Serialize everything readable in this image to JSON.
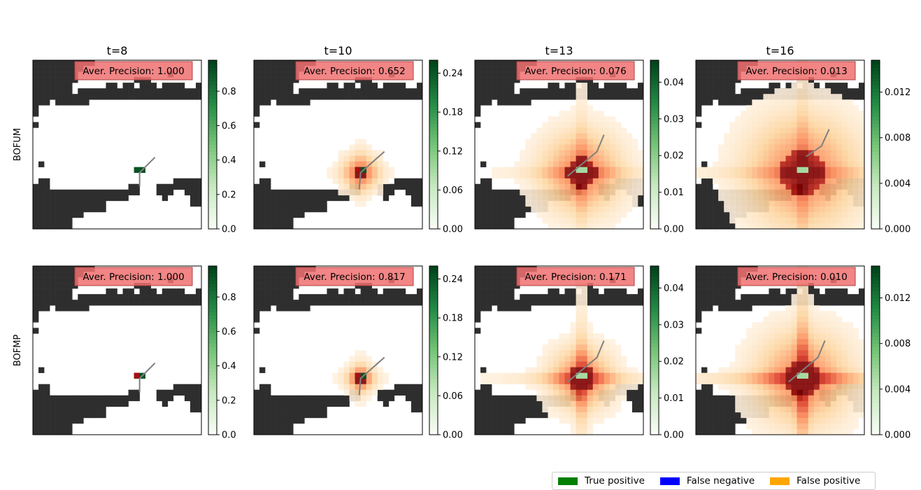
{
  "chart_data": {
    "type": "heatmap",
    "columns": [
      "t=8",
      "t=10",
      "t=13",
      "t=16"
    ],
    "rows": [
      "BOFUM",
      "BOFMP"
    ],
    "annotation_prefix": "Aver. Precision: ",
    "panels": [
      {
        "row": "BOFUM",
        "title": "t=8",
        "average_precision": "1.000",
        "colorbar_ticks": [
          "0.0",
          "0.2",
          "0.4",
          "0.6",
          "0.8"
        ],
        "colorbar_max": 0.98,
        "spread": 0.0,
        "cross": 0.0
      },
      {
        "row": "BOFUM",
        "title": "t=10",
        "average_precision": "0.652",
        "colorbar_ticks": [
          "0.00",
          "0.06",
          "0.12",
          "0.18",
          "0.24"
        ],
        "colorbar_max": 0.26,
        "spread": 3.0,
        "cross": 0.2
      },
      {
        "row": "BOFUM",
        "title": "t=13",
        "average_precision": "0.076",
        "colorbar_ticks": [
          "0.00",
          "0.01",
          "0.02",
          "0.03",
          "0.04"
        ],
        "colorbar_max": 0.046,
        "spread": 6.5,
        "cross": 0.5
      },
      {
        "row": "BOFUM",
        "title": "t=16",
        "average_precision": "0.013",
        "colorbar_ticks": [
          "0.000",
          "0.004",
          "0.008",
          "0.012"
        ],
        "colorbar_max": 0.0148,
        "spread": 9.0,
        "cross": 0.5
      },
      {
        "row": "BOFMP",
        "title": "t=8",
        "average_precision": "1.000",
        "colorbar_ticks": [
          "0.0",
          "0.2",
          "0.4",
          "0.6",
          "0.8"
        ],
        "colorbar_max": 0.98,
        "spread": 0.4,
        "cross": 0.0
      },
      {
        "row": "BOFMP",
        "title": "t=10",
        "average_precision": "0.817",
        "colorbar_ticks": [
          "0.00",
          "0.06",
          "0.12",
          "0.18",
          "0.24"
        ],
        "colorbar_max": 0.26,
        "spread": 2.2,
        "cross": 0.3
      },
      {
        "row": "BOFMP",
        "title": "t=13",
        "average_precision": "0.171",
        "colorbar_ticks": [
          "0.00",
          "0.01",
          "0.02",
          "0.03",
          "0.04"
        ],
        "colorbar_max": 0.046,
        "spread": 5.0,
        "cross": 1.0
      },
      {
        "row": "BOFMP",
        "title": "t=16",
        "average_precision": "0.010",
        "colorbar_ticks": [
          "0.000",
          "0.004",
          "0.008",
          "0.012"
        ],
        "colorbar_max": 0.0148,
        "spread": 7.5,
        "cross": 1.2
      }
    ],
    "legend": [
      {
        "label": "True positive",
        "color": "#008000"
      },
      {
        "label": "False negative",
        "color": "#0000ff"
      },
      {
        "label": "False positive",
        "color": "#ffa500"
      }
    ],
    "colormaps": {
      "probability": "Greens",
      "prediction": "OrRd"
    },
    "colors": {
      "occupied": "#2e2e2e",
      "free": "#ffffff",
      "annotation_box": "#f07070",
      "trajectory": "#808080"
    }
  }
}
